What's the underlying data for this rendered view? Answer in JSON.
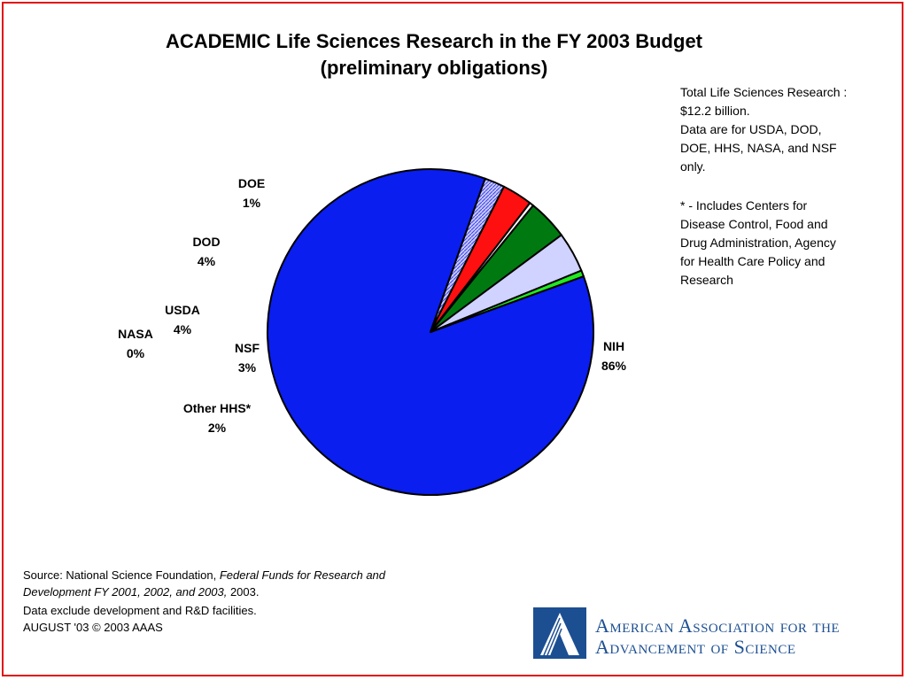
{
  "title": {
    "line1": "ACADEMIC Life Sciences Research in the FY 2003 Budget",
    "line2": "(preliminary obligations)"
  },
  "notes": {
    "summary": [
      "Total Life Sciences Research :",
      "$12.2 billion.",
      "Data are for USDA, DOD,",
      "DOE, HHS, NASA, and NSF",
      "only."
    ],
    "footnote": [
      "* - Includes Centers for",
      "Disease Control, Food and",
      "Drug Administration, Agency",
      "for Health Care Policy and",
      "Research"
    ]
  },
  "chart_data": {
    "type": "pie",
    "title": "ACADEMIC Life Sciences Research in the FY 2003 Budget (preliminary obligations)",
    "slices": [
      {
        "name": "NIH",
        "label": "86%",
        "value": 86,
        "color": "#0a1ef0"
      },
      {
        "name": "Other HHS*",
        "label": "2%",
        "value": 2,
        "color": "#9a9ef8"
      },
      {
        "name": "NSF",
        "label": "3%",
        "value": 3,
        "color": "#ff1010"
      },
      {
        "name": "NASA",
        "label": "0%",
        "value": 0.4,
        "color": "#ffffff"
      },
      {
        "name": "USDA",
        "label": "4%",
        "value": 4,
        "color": "#007a10"
      },
      {
        "name": "DOD",
        "label": "4%",
        "value": 4,
        "color": "#d0d2ff"
      },
      {
        "name": "DOE",
        "label": "1%",
        "value": 0.6,
        "color": "#22e822"
      }
    ]
  },
  "source": {
    "line1_plain": "Source: National Science Foundation, ",
    "line1_italic": "Federal Funds for Research and",
    "line2_italic": "Development  FY 2001, 2002, and 2003,",
    "line2_plain": "  2003.",
    "line3": "Data exclude development and R&D facilities.",
    "line4": "AUGUST '03 © 2003 AAAS"
  },
  "logo": {
    "line1": "American Association for the",
    "line2": "Advancement of Science",
    "color": "#1c4f92"
  },
  "colors": {
    "border": "#e01010"
  }
}
